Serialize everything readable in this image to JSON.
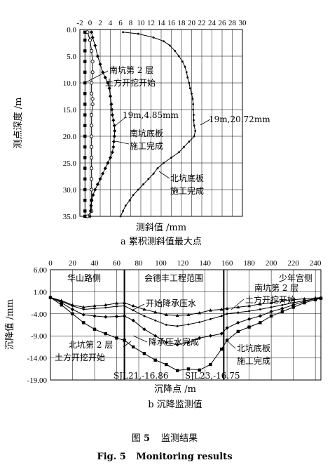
{
  "figure": {
    "caption_cn_prefix": "图",
    "caption_cn_num": "5",
    "caption_cn_text": "监测结果",
    "caption_en_prefix": "Fig. 5",
    "caption_en_text": "Monitoring results"
  },
  "chart_data": [
    {
      "type": "line",
      "subtitle": "a 累积测斜值最大点",
      "xlabel": "测斜值 /mm",
      "ylabel": "测点深度 /m",
      "x_ticks": [
        -2,
        0,
        2,
        4,
        6,
        8,
        10,
        12,
        14,
        16,
        18,
        20,
        22,
        24,
        26,
        28,
        30
      ],
      "y_ticks": [
        0.0,
        5.0,
        10.0,
        15.0,
        20.0,
        25.0,
        30.0,
        35.0
      ],
      "xlim": [
        -2,
        30
      ],
      "ylim": [
        0,
        35
      ],
      "y_inverted": true,
      "x_axis_position": "top",
      "grid": true,
      "series": [
        {
          "marker": "square",
          "points": [
            [
              -1.0,
              0.5
            ],
            [
              -1.0,
              2
            ],
            [
              -1.0,
              4
            ],
            [
              -1.0,
              6
            ],
            [
              -1.0,
              8
            ],
            [
              -1.0,
              10
            ],
            [
              -1.0,
              12
            ],
            [
              -1.0,
              14
            ],
            [
              -1.0,
              16
            ],
            [
              -1.0,
              18
            ],
            [
              -1.0,
              20
            ],
            [
              -1.0,
              22
            ],
            [
              -1.0,
              24
            ],
            [
              -1.0,
              26
            ],
            [
              -1.0,
              28
            ],
            [
              -1.0,
              30
            ],
            [
              -1.0,
              32
            ],
            [
              -1.0,
              34
            ],
            [
              -1.0,
              35
            ]
          ]
        },
        {
          "marker": "circle",
          "points": [
            [
              -0.5,
              0.5
            ],
            [
              0,
              2
            ],
            [
              0.3,
              4
            ],
            [
              0.5,
              6
            ],
            [
              0.5,
              8
            ],
            [
              0.3,
              10
            ],
            [
              0.3,
              12
            ],
            [
              0.5,
              13
            ],
            [
              0.5,
              14
            ],
            [
              0.3,
              16
            ],
            [
              0.3,
              18
            ],
            [
              0.3,
              20
            ],
            [
              0.3,
              22
            ],
            [
              0.3,
              24
            ],
            [
              0.3,
              26
            ],
            [
              0.3,
              28
            ],
            [
              0.3,
              30
            ],
            [
              0.3,
              32
            ],
            [
              0.3,
              34
            ],
            [
              -0.5,
              35
            ]
          ]
        },
        {
          "marker": "diamond",
          "points": [
            [
              0.3,
              0.5
            ],
            [
              0.5,
              1.5
            ],
            [
              1.0,
              3
            ],
            [
              1.5,
              5
            ],
            [
              2.0,
              6.5
            ],
            [
              2.5,
              8
            ],
            [
              3.0,
              9
            ],
            [
              3.5,
              10
            ],
            [
              3.8,
              11
            ],
            [
              4.0,
              12.5
            ],
            [
              4.2,
              14
            ],
            [
              4.3,
              15
            ],
            [
              4.4,
              16
            ],
            [
              4.6,
              17
            ],
            [
              4.8,
              18
            ],
            [
              4.85,
              19
            ],
            [
              4.8,
              20
            ],
            [
              4.7,
              21
            ],
            [
              4.6,
              22
            ],
            [
              4.4,
              23
            ],
            [
              4.0,
              24
            ],
            [
              3.5,
              25
            ],
            [
              3.0,
              26
            ],
            [
              2.5,
              27
            ],
            [
              2.0,
              28
            ],
            [
              1.5,
              29
            ],
            [
              1.0,
              30
            ],
            [
              0.6,
              31
            ],
            [
              0.3,
              32
            ],
            [
              0.2,
              33
            ],
            [
              0.1,
              34
            ],
            [
              0.0,
              35
            ]
          ]
        },
        {
          "marker": "dot",
          "points": [
            [
              6.5,
              0.5
            ],
            [
              9.5,
              0.8
            ],
            [
              12.5,
              1.5
            ],
            [
              14.5,
              2.2
            ],
            [
              15.7,
              3
            ],
            [
              16.7,
              4
            ],
            [
              17.5,
              5
            ],
            [
              18.2,
              6
            ],
            [
              18.7,
              7
            ],
            [
              19.0,
              8
            ],
            [
              19.2,
              9
            ],
            [
              19.5,
              10
            ],
            [
              19.7,
              11
            ],
            [
              20.0,
              12
            ],
            [
              20.2,
              13
            ],
            [
              20.3,
              14
            ],
            [
              20.3,
              15
            ],
            [
              20.4,
              16
            ],
            [
              20.4,
              17
            ],
            [
              20.5,
              18
            ],
            [
              20.72,
              19
            ],
            [
              20.5,
              20
            ],
            [
              19.5,
              21
            ],
            [
              18.5,
              22
            ],
            [
              17.5,
              23
            ],
            [
              16.0,
              24
            ],
            [
              14.5,
              25
            ],
            [
              13.3,
              26
            ],
            [
              12.5,
              27
            ],
            [
              11.5,
              28
            ],
            [
              10.5,
              29
            ],
            [
              9.5,
              30
            ],
            [
              8.5,
              31
            ],
            [
              7.8,
              32
            ],
            [
              7.0,
              33
            ],
            [
              6.5,
              34
            ],
            [
              6.0,
              35
            ]
          ]
        }
      ],
      "annotations": [
        "南坑第 2 层",
        "土方开挖开始",
        "19m,4.85mm",
        "19m,20.72mm",
        "南坑底板",
        "施工完成",
        "北坑底板",
        "施工完成"
      ]
    },
    {
      "type": "line",
      "subtitle": "b 沉降监测值",
      "xlabel": "沉降点 /m",
      "ylabel": "沉降值 /mm",
      "x_ticks": [
        0,
        20,
        40,
        60,
        80,
        100,
        120,
        140,
        160,
        180,
        200,
        220,
        240
      ],
      "y_ticks": [
        "6.00",
        "1.00",
        "-4.00",
        "-9.00",
        "-14.00",
        "-19.00"
      ],
      "xlim": [
        0,
        245
      ],
      "ylim": [
        -19,
        6
      ],
      "x_axis_position": "top",
      "grid": true,
      "vertical_lines_x": [
        67,
        157
      ],
      "region_labels": [
        "华山路侧",
        "会德丰工程范围",
        "少年宫侧"
      ],
      "series": [
        {
          "marker": "triangle",
          "points": [
            [
              0,
              -0.3
            ],
            [
              10,
              -1
            ],
            [
              20,
              -2
            ],
            [
              30,
              -2.5
            ],
            [
              40,
              -2.2
            ],
            [
              50,
              -2
            ],
            [
              60,
              -1.6
            ],
            [
              67,
              -1.5
            ],
            [
              75,
              -2.2
            ],
            [
              85,
              -3
            ],
            [
              95,
              -3.6
            ],
            [
              105,
              -4.2
            ],
            [
              115,
              -4.4
            ],
            [
              125,
              -4.2
            ],
            [
              135,
              -3.8
            ],
            [
              145,
              -3.2
            ],
            [
              155,
              -3
            ],
            [
              160,
              -2.8
            ],
            [
              170,
              -2.5
            ],
            [
              180,
              -2.2
            ],
            [
              190,
              -1.8
            ],
            [
              200,
              -1.5
            ],
            [
              210,
              -1
            ],
            [
              220,
              -0.8
            ],
            [
              230,
              -0.6
            ],
            [
              240,
              -0.4
            ],
            [
              245,
              -0.3
            ]
          ]
        },
        {
          "marker": "dot",
          "points": [
            [
              0,
              -0.3
            ],
            [
              10,
              -1.2
            ],
            [
              20,
              -2.2
            ],
            [
              30,
              -3
            ],
            [
              40,
              -2.8
            ],
            [
              50,
              -2.6
            ],
            [
              60,
              -2.3
            ],
            [
              67,
              -2.2
            ],
            [
              75,
              -3.2
            ],
            [
              85,
              -4.5
            ],
            [
              95,
              -5.5
            ],
            [
              105,
              -6.5
            ],
            [
              115,
              -6.8
            ],
            [
              125,
              -6.4
            ],
            [
              135,
              -5.9
            ],
            [
              145,
              -5.2
            ],
            [
              155,
              -4.5
            ],
            [
              160,
              -4
            ],
            [
              170,
              -3.7
            ],
            [
              180,
              -3.4
            ],
            [
              190,
              -3
            ],
            [
              200,
              -2.5
            ],
            [
              210,
              -2
            ],
            [
              220,
              -1.5
            ],
            [
              230,
              -1
            ],
            [
              240,
              -0.6
            ],
            [
              245,
              -0.4
            ]
          ]
        },
        {
          "marker": "diamond",
          "points": [
            [
              0,
              -0.3
            ],
            [
              10,
              -1.5
            ],
            [
              20,
              -3
            ],
            [
              30,
              -4.2
            ],
            [
              40,
              -4.5
            ],
            [
              50,
              -4.7
            ],
            [
              60,
              -4.6
            ],
            [
              67,
              -4.5
            ],
            [
              75,
              -5.5
            ],
            [
              85,
              -7.5
            ],
            [
              95,
              -9
            ],
            [
              105,
              -10.5
            ],
            [
              115,
              -11
            ],
            [
              125,
              -10.5
            ],
            [
              135,
              -9.5
            ],
            [
              145,
              -9
            ],
            [
              155,
              -8.5
            ],
            [
              160,
              -7.2
            ],
            [
              170,
              -6
            ],
            [
              180,
              -5.2
            ],
            [
              190,
              -4.5
            ],
            [
              200,
              -3.5
            ],
            [
              210,
              -2.8
            ],
            [
              220,
              -2
            ],
            [
              230,
              -1.2
            ],
            [
              240,
              -0.6
            ],
            [
              245,
              -0.4
            ]
          ]
        },
        {
          "marker": "square",
          "points": [
            [
              0,
              -0.3
            ],
            [
              10,
              -2
            ],
            [
              20,
              -4
            ],
            [
              30,
              -6
            ],
            [
              40,
              -7.5
            ],
            [
              50,
              -8.5
            ],
            [
              60,
              -9.5
            ],
            [
              67,
              -10
            ],
            [
              75,
              -11.5
            ],
            [
              85,
              -13
            ],
            [
              95,
              -14.5
            ],
            [
              105,
              -15.5
            ],
            [
              115,
              -16.86
            ],
            [
              125,
              -16.5
            ],
            [
              135,
              -16.75
            ],
            [
              145,
              -15.5
            ],
            [
              155,
              -12
            ],
            [
              160,
              -10
            ],
            [
              170,
              -8
            ],
            [
              180,
              -7
            ],
            [
              190,
              -6
            ],
            [
              200,
              -4.5
            ],
            [
              210,
              -3.5
            ],
            [
              220,
              -2.5
            ],
            [
              230,
              -1.5
            ],
            [
              240,
              -0.8
            ],
            [
              245,
              -0.5
            ]
          ]
        }
      ],
      "annotations": [
        "开始降承压水",
        "南坑第 2 层",
        "土方开挖开始",
        "降承压水完成",
        "北坑第 2 层",
        "土方开挖开始",
        "北坑底板",
        "施工完成",
        "SJL21,-16.86",
        "SJL23,-16.75"
      ]
    }
  ]
}
